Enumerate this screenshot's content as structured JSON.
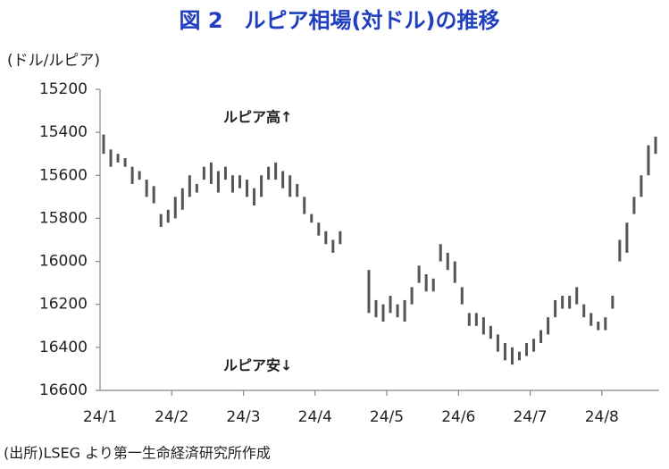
{
  "chart_data": {
    "type": "range-bar",
    "title": "図 2　ルピア相場(対ドル)の推移",
    "y_label": "(ドル/ルピア)",
    "annotations": [
      "ルピア高↑",
      "ルピア安↓"
    ],
    "source": "(出所)LSEG より第一生命経済研究所作成",
    "color": "#555555",
    "ylim": [
      16600,
      15200
    ],
    "yticks": [
      15200,
      15400,
      15600,
      15800,
      16000,
      16200,
      16400,
      16600
    ],
    "categories": [
      "24/1",
      null,
      null,
      null,
      null,
      null,
      null,
      null,
      null,
      null,
      "24/2",
      null,
      null,
      null,
      null,
      null,
      null,
      null,
      null,
      null,
      "24/3",
      null,
      null,
      null,
      null,
      null,
      null,
      null,
      null,
      null,
      "24/4",
      null,
      null,
      null,
      null,
      null,
      null,
      null,
      null,
      null,
      "24/5",
      null,
      null,
      null,
      null,
      null,
      null,
      null,
      null,
      null,
      "24/6",
      null,
      null,
      null,
      null,
      null,
      null,
      null,
      null,
      null,
      "24/7",
      null,
      null,
      null,
      null,
      null,
      null,
      null,
      null,
      null,
      "24/8",
      null,
      null,
      null,
      null,
      null,
      null,
      null
    ],
    "low": [
      15410,
      15480,
      15500,
      15520,
      15560,
      15580,
      15620,
      15650,
      15780,
      15760,
      15700,
      15660,
      15600,
      15640,
      15560,
      15540,
      15580,
      15560,
      15600,
      15600,
      15620,
      15660,
      15600,
      15560,
      15540,
      15580,
      15600,
      15640,
      15700,
      15780,
      15820,
      15860,
      15900,
      15860,
      null,
      null,
      null,
      16040,
      16180,
      16200,
      16160,
      16200,
      16180,
      16120,
      16020,
      16060,
      16080,
      15920,
      15960,
      16000,
      16120,
      16240,
      16240,
      16260,
      16300,
      16340,
      16380,
      16400,
      16420,
      16380,
      16360,
      16320,
      16260,
      16180,
      16160,
      16160,
      16120,
      16200,
      16240,
      16280,
      16260,
      16160,
      15900,
      15820,
      15700,
      15600,
      15460,
      15420
    ],
    "high": [
      15500,
      15560,
      15540,
      15560,
      15640,
      15620,
      15700,
      15730,
      15840,
      15820,
      15800,
      15760,
      15700,
      15680,
      15620,
      15640,
      15680,
      15620,
      15680,
      15660,
      15700,
      15740,
      15700,
      15620,
      15620,
      15660,
      15700,
      15700,
      15780,
      15820,
      15880,
      15920,
      15960,
      15920,
      null,
      null,
      null,
      16240,
      16260,
      16280,
      16240,
      16260,
      16280,
      16200,
      16100,
      16140,
      16140,
      16000,
      16040,
      16100,
      16200,
      16300,
      16300,
      16340,
      16360,
      16420,
      16460,
      16480,
      16460,
      16440,
      16420,
      16380,
      16340,
      16260,
      16220,
      16220,
      16200,
      16260,
      16300,
      16320,
      16320,
      16220,
      16000,
      15960,
      15780,
      15700,
      15600,
      15500
    ]
  }
}
